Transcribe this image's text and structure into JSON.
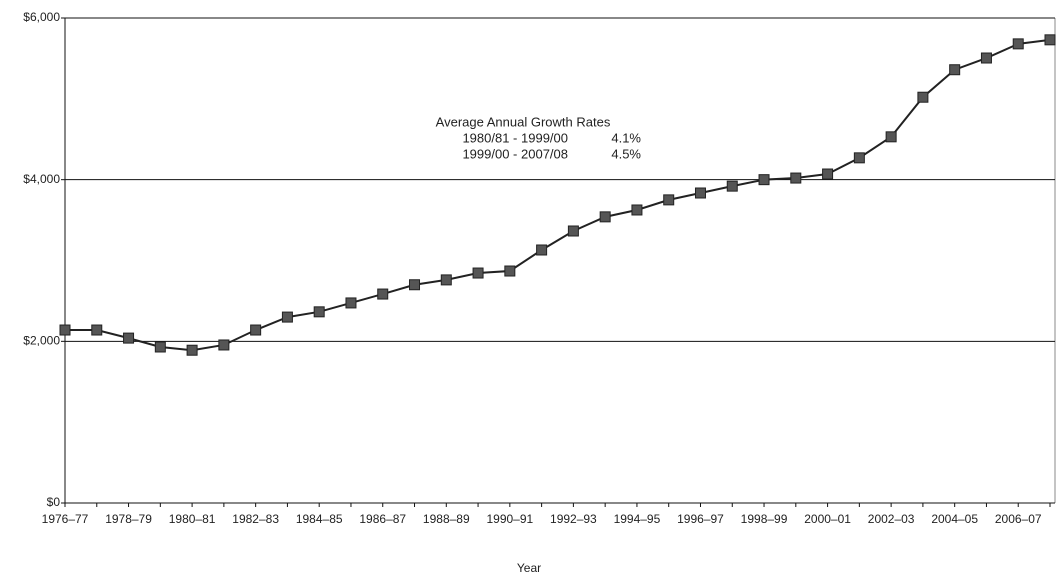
{
  "chart_data": {
    "type": "line",
    "x_label": "Year",
    "categories": [
      "1976–77",
      null,
      "1978–79",
      null,
      "1980–81",
      null,
      "1982–83",
      null,
      "1984–85",
      null,
      "1986–87",
      null,
      "1988–89",
      null,
      "1990–91",
      null,
      "1992–93",
      null,
      "1994–95",
      null,
      "1996–97",
      null,
      "1998–99",
      null,
      "2000–01",
      null,
      "2002–03",
      null,
      "2004–05",
      null,
      "2006–07",
      null
    ],
    "series": [
      {
        "color": "#222222",
        "values": [
          2140,
          2140,
          2040,
          1930,
          1890,
          1955,
          2140,
          2300,
          2365,
          2475,
          2585,
          2700,
          2760,
          2845,
          2870,
          3130,
          3365,
          3540,
          3625,
          3750,
          3835,
          3920,
          4000,
          4020,
          4070,
          4270,
          4530,
          5020,
          5360,
          5505,
          5680,
          5730
        ]
      }
    ],
    "ylim": [
      0,
      6000
    ],
    "yticks": [
      {
        "value": 0,
        "label": "$0"
      },
      {
        "value": 2000,
        "label": "$2,000"
      },
      {
        "value": 4000,
        "label": "$4,000"
      },
      {
        "value": 6000,
        "label": "$6,000"
      }
    ],
    "grid": true,
    "annotation": {
      "title": "Average Annual Growth Rates",
      "rows": [
        [
          "1980/81 - 1999/00",
          "4.1%"
        ],
        [
          "1999/00 - 2007/08",
          "4.5%"
        ]
      ]
    }
  }
}
